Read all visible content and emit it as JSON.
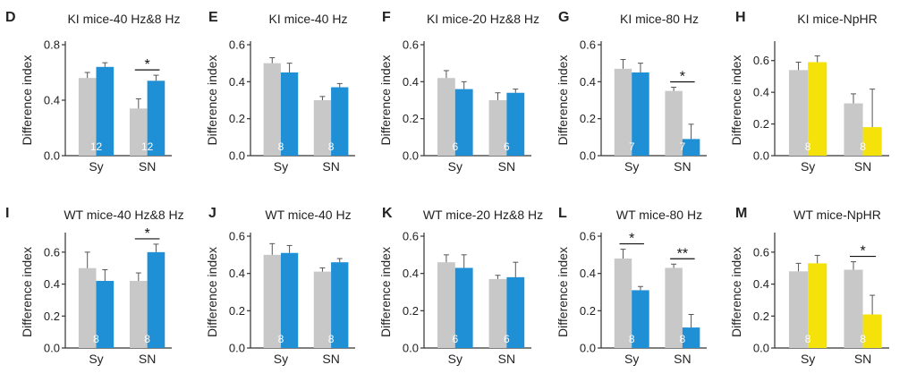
{
  "figure": {
    "bar_colors": {
      "control": "#c8c8c8",
      "blue": "#1f8fd6",
      "yellow": "#f5e20a",
      "count": "#ffffff"
    },
    "text_color": "#222222"
  },
  "chart_data": [
    {
      "panel": "D",
      "title": "KI mice-40 Hz&8 Hz",
      "type": "bar",
      "ylabel": "Difference index",
      "categories": [
        "Sy",
        "SN"
      ],
      "ylim": [
        0,
        0.8
      ],
      "yticks": [
        "0.0",
        "0.4",
        "0.8"
      ],
      "tickvals": [
        0,
        0.4,
        0.8
      ],
      "stim_color": "blue",
      "series": [
        {
          "name": "control",
          "values": [
            0.56,
            0.34
          ],
          "errors": [
            0.04,
            0.07
          ]
        },
        {
          "name": "stimulated",
          "values": [
            0.64,
            0.54
          ],
          "errors": [
            0.03,
            0.04
          ]
        }
      ],
      "n": [
        "12",
        "12"
      ],
      "sig": [
        {
          "group": 1,
          "label": "*"
        }
      ]
    },
    {
      "panel": "E",
      "title": "KI mice-40 Hz",
      "type": "bar",
      "ylabel": "Difference index",
      "categories": [
        "Sy",
        "SN"
      ],
      "ylim": [
        0,
        0.6
      ],
      "yticks": [
        "0.0",
        "0.2",
        "0.4",
        "0.6"
      ],
      "tickvals": [
        0,
        0.2,
        0.4,
        0.6
      ],
      "stim_color": "blue",
      "series": [
        {
          "name": "control",
          "values": [
            0.5,
            0.3
          ],
          "errors": [
            0.03,
            0.02
          ]
        },
        {
          "name": "stimulated",
          "values": [
            0.45,
            0.37
          ],
          "errors": [
            0.05,
            0.02
          ]
        }
      ],
      "n": [
        "8",
        "8"
      ],
      "sig": []
    },
    {
      "panel": "F",
      "title": "KI mice-20 Hz&8 Hz",
      "type": "bar",
      "ylabel": "Difference index",
      "categories": [
        "Sy",
        "SN"
      ],
      "ylim": [
        0,
        0.6
      ],
      "yticks": [
        "0.0",
        "0.2",
        "0.4",
        "0.6"
      ],
      "tickvals": [
        0,
        0.2,
        0.4,
        0.6
      ],
      "stim_color": "blue",
      "series": [
        {
          "name": "control",
          "values": [
            0.42,
            0.3
          ],
          "errors": [
            0.04,
            0.04
          ]
        },
        {
          "name": "stimulated",
          "values": [
            0.36,
            0.34
          ],
          "errors": [
            0.04,
            0.02
          ]
        }
      ],
      "n": [
        "6",
        "6"
      ],
      "sig": []
    },
    {
      "panel": "G",
      "title": "KI mice-80 Hz",
      "type": "bar",
      "ylabel": "Difference index",
      "categories": [
        "Sy",
        "SN"
      ],
      "ylim": [
        0,
        0.6
      ],
      "yticks": [
        "0.0",
        "0.2",
        "0.4",
        "0.6"
      ],
      "tickvals": [
        0,
        0.2,
        0.4,
        0.6
      ],
      "stim_color": "blue",
      "series": [
        {
          "name": "control",
          "values": [
            0.47,
            0.35
          ],
          "errors": [
            0.05,
            0.02
          ]
        },
        {
          "name": "stimulated",
          "values": [
            0.45,
            0.09
          ],
          "errors": [
            0.05,
            0.08
          ]
        }
      ],
      "n": [
        "7",
        "7"
      ],
      "sig": [
        {
          "group": 1,
          "label": "*"
        }
      ]
    },
    {
      "panel": "H",
      "title": "KI mice-NpHR",
      "type": "bar",
      "ylabel": "Difference index",
      "categories": [
        "Sy",
        "SN"
      ],
      "ylim": [
        0,
        0.7
      ],
      "yticks": [
        "0.0",
        "0.2",
        "0.4",
        "0.6"
      ],
      "tickvals": [
        0,
        0.2,
        0.4,
        0.6
      ],
      "stim_color": "yellow",
      "series": [
        {
          "name": "control",
          "values": [
            0.54,
            0.33
          ],
          "errors": [
            0.05,
            0.06
          ]
        },
        {
          "name": "stimulated",
          "values": [
            0.59,
            0.18
          ],
          "errors": [
            0.04,
            0.24
          ]
        }
      ],
      "n": [
        "8",
        "8"
      ],
      "sig": []
    },
    {
      "panel": "I",
      "title": "WT mice-40 Hz&8 Hz",
      "type": "bar",
      "ylabel": "Difference index",
      "categories": [
        "Sy",
        "SN"
      ],
      "ylim": [
        0,
        0.7
      ],
      "yticks": [
        "0.0",
        "0.2",
        "0.4",
        "0.6"
      ],
      "tickvals": [
        0,
        0.2,
        0.4,
        0.6
      ],
      "stim_color": "blue",
      "series": [
        {
          "name": "control",
          "values": [
            0.5,
            0.42
          ],
          "errors": [
            0.1,
            0.05
          ]
        },
        {
          "name": "stimulated",
          "values": [
            0.42,
            0.6
          ],
          "errors": [
            0.07,
            0.05
          ]
        }
      ],
      "n": [
        "8",
        "8"
      ],
      "sig": [
        {
          "group": 1,
          "label": "*"
        }
      ]
    },
    {
      "panel": "J",
      "title": "WT mice-40 Hz",
      "type": "bar",
      "ylabel": "Difference index",
      "categories": [
        "Sy",
        "SN"
      ],
      "ylim": [
        0,
        0.6
      ],
      "yticks": [
        "0.0",
        "0.2",
        "0.4",
        "0.6"
      ],
      "tickvals": [
        0,
        0.2,
        0.4,
        0.6
      ],
      "stim_color": "blue",
      "series": [
        {
          "name": "control",
          "values": [
            0.5,
            0.41
          ],
          "errors": [
            0.06,
            0.02
          ]
        },
        {
          "name": "stimulated",
          "values": [
            0.51,
            0.46
          ],
          "errors": [
            0.04,
            0.02
          ]
        }
      ],
      "n": [
        "8",
        "8"
      ],
      "sig": []
    },
    {
      "panel": "K",
      "title": "WT mice-20 Hz&8 Hz",
      "type": "bar",
      "ylabel": "Difference index",
      "categories": [
        "Sy",
        "SN"
      ],
      "ylim": [
        0,
        0.6
      ],
      "yticks": [
        "0.0",
        "0.2",
        "0.4",
        "0.6"
      ],
      "tickvals": [
        0,
        0.2,
        0.4,
        0.6
      ],
      "stim_color": "blue",
      "series": [
        {
          "name": "control",
          "values": [
            0.46,
            0.37
          ],
          "errors": [
            0.04,
            0.02
          ]
        },
        {
          "name": "stimulated",
          "values": [
            0.43,
            0.38
          ],
          "errors": [
            0.07,
            0.08
          ]
        }
      ],
      "n": [
        "6",
        "6"
      ],
      "sig": []
    },
    {
      "panel": "L",
      "title": "WT mice-80 Hz",
      "type": "bar",
      "ylabel": "Difference index",
      "categories": [
        "Sy",
        "SN"
      ],
      "ylim": [
        0,
        0.6
      ],
      "yticks": [
        "0.0",
        "0.2",
        "0.4",
        "0.6"
      ],
      "tickvals": [
        0,
        0.2,
        0.4,
        0.6
      ],
      "stim_color": "blue",
      "series": [
        {
          "name": "control",
          "values": [
            0.48,
            0.43
          ],
          "errors": [
            0.05,
            0.02
          ]
        },
        {
          "name": "stimulated",
          "values": [
            0.31,
            0.11
          ],
          "errors": [
            0.02,
            0.07
          ]
        }
      ],
      "n": [
        "8",
        "8"
      ],
      "sig": [
        {
          "group": 0,
          "label": "*"
        },
        {
          "group": 1,
          "label": "**"
        }
      ]
    },
    {
      "panel": "M",
      "title": "WT mice-NpHR",
      "type": "bar",
      "ylabel": "Difference index",
      "categories": [
        "Sy",
        "SN"
      ],
      "ylim": [
        0,
        0.7
      ],
      "yticks": [
        "0.0",
        "0.2",
        "0.4",
        "0.6"
      ],
      "tickvals": [
        0,
        0.2,
        0.4,
        0.6
      ],
      "stim_color": "yellow",
      "series": [
        {
          "name": "control",
          "values": [
            0.48,
            0.49
          ],
          "errors": [
            0.05,
            0.05
          ]
        },
        {
          "name": "stimulated",
          "values": [
            0.53,
            0.21
          ],
          "errors": [
            0.05,
            0.12
          ]
        }
      ],
      "n": [
        "8",
        "8"
      ],
      "sig": [
        {
          "group": 1,
          "label": "*"
        }
      ]
    }
  ]
}
